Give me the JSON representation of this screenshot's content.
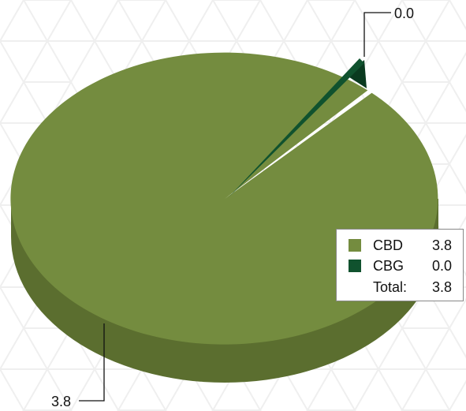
{
  "chart_data": {
    "type": "pie",
    "style": "3d",
    "categories": [
      "CBD",
      "CBG"
    ],
    "values": [
      3.8,
      0.0
    ],
    "colors": [
      "#748c3f",
      "#10522e"
    ],
    "side_colors": [
      "#5b6e2f",
      "#0a3a1f"
    ],
    "data_labels": [
      "3.8",
      "0.0"
    ],
    "legend": {
      "position": "right",
      "items": [
        {
          "name": "CBD",
          "value": "3.8"
        },
        {
          "name": "CBG",
          "value": "0.0"
        }
      ],
      "total_label": "Total:",
      "total_value": "3.8"
    }
  }
}
